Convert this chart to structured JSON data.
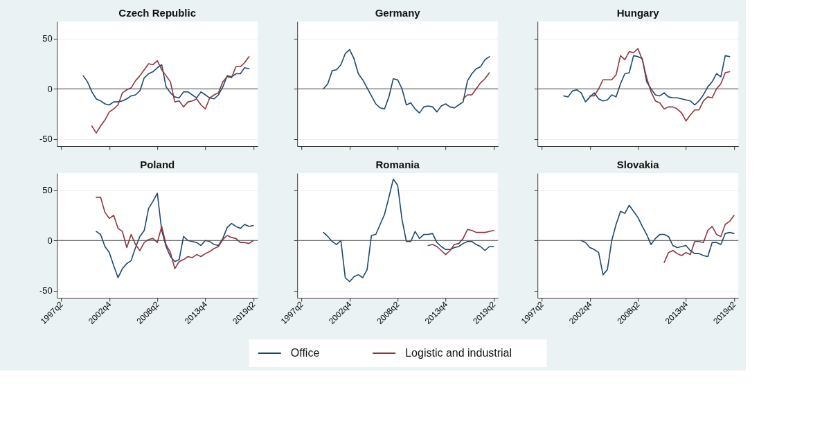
{
  "chart_data": [
    {
      "type": "line",
      "title": "Czech Republic",
      "tick_labels": "y",
      "grid": "y",
      "legend": "bottom",
      "categories": [
        "1997q2",
        null,
        null,
        null,
        null,
        null,
        null,
        null,
        null,
        null,
        null,
        "2002q4",
        null,
        null,
        null,
        null,
        null,
        null,
        null,
        null,
        null,
        null,
        "2008q2",
        null,
        null,
        null,
        null,
        null,
        null,
        null,
        null,
        null,
        null,
        "2013q4",
        null,
        null,
        null,
        null,
        null,
        null,
        null,
        null,
        null,
        null,
        "2019q2"
      ],
      "series": [
        {
          "name": "Office",
          "color": "#1a476f",
          "values": [
            null,
            null,
            null,
            null,
            null,
            13,
            7,
            -3,
            -10,
            -12,
            -15,
            -16,
            -13,
            -13,
            -12,
            -10,
            -7,
            -6,
            -2,
            11,
            15,
            17,
            21,
            24,
            2,
            -4,
            -8,
            -9,
            -3,
            -3,
            -6,
            -9,
            -3,
            -6,
            -9,
            -10,
            -6,
            2,
            13,
            12,
            15,
            15,
            21,
            20,
            null
          ]
        },
        {
          "name": "Logistic and industrial",
          "color": "#90353b",
          "values": [
            null,
            null,
            null,
            null,
            null,
            null,
            null,
            -37,
            -44,
            -37,
            -31,
            -23,
            -20,
            -16,
            -4,
            -1,
            1,
            8,
            13,
            19,
            25,
            24,
            28,
            19,
            13,
            7,
            -13,
            -12,
            -18,
            -13,
            -12,
            -10,
            -16,
            -20,
            -9,
            -6,
            -4,
            7,
            12,
            11,
            22,
            22,
            26,
            32,
            null
          ]
        }
      ],
      "ylim": [
        -57,
        67
      ],
      "yticks": [
        -50,
        0,
        50
      ],
      "ref_lines": [
        {
          "axis": "y",
          "value": 0
        }
      ]
    },
    {
      "type": "line",
      "title": "Germany",
      "tick_labels": false,
      "grid": "y",
      "categories": [
        "1997q2",
        null,
        null,
        null,
        null,
        null,
        null,
        null,
        null,
        null,
        null,
        "2002q4",
        null,
        null,
        null,
        null,
        null,
        null,
        null,
        null,
        null,
        null,
        "2008q2",
        null,
        null,
        null,
        null,
        null,
        null,
        null,
        null,
        null,
        null,
        "2013q4",
        null,
        null,
        null,
        null,
        null,
        null,
        null,
        null,
        null,
        null,
        "2019q2"
      ],
      "series": [
        {
          "name": "Office",
          "color": "#1a476f",
          "values": [
            null,
            null,
            null,
            null,
            null,
            0,
            5,
            18,
            19,
            24,
            35,
            39,
            30,
            15,
            9,
            1,
            -7,
            -15,
            -19,
            -20,
            -8,
            10,
            9,
            0,
            -16,
            -14,
            -20,
            -24,
            -18,
            -17,
            -18,
            -23,
            -17,
            -15,
            -18,
            -19,
            -16,
            -13,
            8,
            15,
            20,
            22,
            29,
            32,
            null
          ]
        },
        {
          "name": "Logistic and industrial",
          "color": "#90353b",
          "values": [
            null,
            null,
            null,
            null,
            null,
            null,
            null,
            null,
            null,
            null,
            null,
            null,
            null,
            null,
            null,
            null,
            null,
            null,
            null,
            null,
            null,
            null,
            null,
            null,
            null,
            null,
            null,
            null,
            null,
            null,
            null,
            null,
            null,
            null,
            null,
            null,
            null,
            -10,
            -6,
            -6,
            0,
            6,
            10,
            16,
            null
          ]
        }
      ],
      "ylim": [
        -57,
        67
      ],
      "yticks": [
        -50,
        0,
        50
      ],
      "ref_lines": [
        {
          "axis": "y",
          "value": 0
        }
      ]
    },
    {
      "type": "line",
      "title": "Hungary",
      "tick_labels": false,
      "grid": "y",
      "categories": [
        "1997q2",
        null,
        null,
        null,
        null,
        null,
        null,
        null,
        null,
        null,
        null,
        "2002q4",
        null,
        null,
        null,
        null,
        null,
        null,
        null,
        null,
        null,
        null,
        "2008q2",
        null,
        null,
        null,
        null,
        null,
        null,
        null,
        null,
        null,
        null,
        "2013q4",
        null,
        null,
        null,
        null,
        null,
        null,
        null,
        null,
        null,
        null,
        "2019q2"
      ],
      "series": [
        {
          "name": "Office",
          "color": "#1a476f",
          "values": [
            null,
            null,
            null,
            null,
            null,
            -7,
            -8,
            -2,
            -1,
            -4,
            -13,
            -8,
            -4,
            -10,
            -12,
            -11,
            -6,
            -8,
            5,
            15,
            16,
            33,
            32,
            30,
            7,
            0,
            -6,
            -7,
            -4,
            -8,
            -9,
            -9,
            -10,
            -11,
            -12,
            -16,
            -12,
            -6,
            2,
            7,
            15,
            12,
            33,
            32,
            null
          ]
        },
        {
          "name": "Logistic and industrial",
          "color": "#90353b",
          "values": [
            null,
            null,
            null,
            null,
            null,
            null,
            null,
            null,
            null,
            null,
            null,
            -7,
            -7,
            0,
            9,
            9,
            9,
            14,
            33,
            29,
            37,
            36,
            40,
            29,
            11,
            -3,
            -12,
            -14,
            -20,
            -18,
            -18,
            -20,
            -24,
            -32,
            -26,
            -21,
            -21,
            -12,
            -8,
            -9,
            0,
            5,
            16,
            17,
            null
          ]
        }
      ],
      "ylim": [
        -57,
        67
      ],
      "yticks": [
        -50,
        0,
        50
      ],
      "ref_lines": [
        {
          "axis": "y",
          "value": 0
        }
      ]
    },
    {
      "type": "line",
      "title": "Poland",
      "grid": "y",
      "categories": [
        "1997q2",
        null,
        null,
        null,
        null,
        null,
        null,
        null,
        null,
        null,
        null,
        "2002q4",
        null,
        null,
        null,
        null,
        null,
        null,
        null,
        null,
        null,
        null,
        "2008q2",
        null,
        null,
        null,
        null,
        null,
        null,
        null,
        null,
        null,
        null,
        "2013q4",
        null,
        null,
        null,
        null,
        null,
        null,
        null,
        null,
        null,
        null,
        "2019q2"
      ],
      "series": [
        {
          "name": "Office",
          "color": "#1a476f",
          "values": [
            null,
            null,
            null,
            null,
            null,
            null,
            null,
            null,
            9,
            6,
            -6,
            -12,
            -25,
            -37,
            -28,
            -23,
            -20,
            -7,
            4,
            10,
            32,
            39,
            47,
            10,
            -6,
            -16,
            -21,
            -19,
            4,
            0,
            -1,
            -2,
            -5,
            0,
            -1,
            -4,
            -5,
            2,
            13,
            17,
            14,
            12,
            16,
            14,
            15
          ]
        },
        {
          "name": "Logistic and industrial",
          "color": "#90353b",
          "values": [
            null,
            null,
            null,
            null,
            null,
            null,
            null,
            null,
            43,
            43,
            28,
            22,
            25,
            12,
            9,
            -7,
            6,
            -4,
            -10,
            -2,
            1,
            2,
            -2,
            14,
            -4,
            -12,
            -28,
            -21,
            -19,
            -16,
            -17,
            -14,
            -16,
            -13,
            -11,
            -8,
            -6,
            1,
            5,
            3,
            2,
            -2,
            -2,
            -3,
            0
          ]
        }
      ],
      "ylim": [
        -57,
        67
      ],
      "yticks": [
        -50,
        0,
        50
      ],
      "ref_lines": [
        {
          "axis": "y",
          "value": 0
        }
      ]
    },
    {
      "type": "line",
      "title": "Romania",
      "tick_labels": "x",
      "grid": "y",
      "categories": [
        "1997q2",
        null,
        null,
        null,
        null,
        null,
        null,
        null,
        null,
        null,
        null,
        "2002q4",
        null,
        null,
        null,
        null,
        null,
        null,
        null,
        null,
        null,
        null,
        "2008q2",
        null,
        null,
        null,
        null,
        null,
        null,
        null,
        null,
        null,
        null,
        "2013q4",
        null,
        null,
        null,
        null,
        null,
        null,
        null,
        null,
        null,
        null,
        "2019q2"
      ],
      "series": [
        {
          "name": "Office",
          "color": "#1a476f",
          "values": [
            null,
            null,
            null,
            null,
            null,
            8,
            4,
            -1,
            -4,
            0,
            -37,
            -41,
            -36,
            -34,
            -37,
            -29,
            5,
            6,
            16,
            26,
            43,
            61,
            55,
            21,
            -1,
            -1,
            9,
            2,
            6,
            6,
            7,
            -2,
            -6,
            -9,
            -9,
            -7,
            -6,
            -3,
            -1,
            -1,
            -4,
            -6,
            -10,
            -6,
            -6
          ]
        },
        {
          "name": "Logistic and industrial",
          "color": "#90353b",
          "values": [
            null,
            null,
            null,
            null,
            null,
            null,
            null,
            null,
            null,
            null,
            null,
            null,
            null,
            null,
            null,
            null,
            null,
            null,
            null,
            null,
            null,
            null,
            null,
            null,
            null,
            null,
            null,
            null,
            null,
            -5,
            -4,
            -6,
            -10,
            -14,
            -10,
            -4,
            -3,
            2,
            11,
            10,
            8,
            8,
            8,
            9,
            10
          ]
        }
      ],
      "ylim": [
        -57,
        67
      ],
      "yticks": [
        -50,
        0,
        50
      ],
      "ref_lines": [
        {
          "axis": "y",
          "value": 0
        }
      ]
    },
    {
      "type": "line",
      "title": "Slovakia",
      "tick_labels": "x",
      "grid": "y",
      "categories": [
        "1997q2",
        null,
        null,
        null,
        null,
        null,
        null,
        null,
        null,
        null,
        null,
        "2002q4",
        null,
        null,
        null,
        null,
        null,
        null,
        null,
        null,
        null,
        null,
        "2008q2",
        null,
        null,
        null,
        null,
        null,
        null,
        null,
        null,
        null,
        null,
        "2013q4",
        null,
        null,
        null,
        null,
        null,
        null,
        null,
        null,
        null,
        null,
        "2019q2"
      ],
      "series": [
        {
          "name": "Office",
          "color": "#1a476f",
          "values": [
            null,
            null,
            null,
            null,
            null,
            null,
            null,
            null,
            null,
            0,
            -2,
            -7,
            -9,
            -12,
            -34,
            -29,
            0,
            16,
            29,
            27,
            35,
            29,
            23,
            14,
            6,
            -4,
            2,
            6,
            6,
            4,
            -5,
            -7,
            -6,
            -5,
            -10,
            -13,
            -13,
            -15,
            -16,
            -2,
            -2,
            -4,
            7,
            8,
            7
          ]
        },
        {
          "name": "Logistic and industrial",
          "color": "#90353b",
          "values": [
            null,
            null,
            null,
            null,
            null,
            null,
            null,
            null,
            null,
            null,
            null,
            null,
            null,
            null,
            null,
            null,
            null,
            null,
            null,
            null,
            null,
            null,
            null,
            null,
            null,
            null,
            null,
            null,
            -22,
            -12,
            -10,
            -13,
            -15,
            -12,
            -14,
            -1,
            -1,
            -2,
            10,
            14,
            6,
            4,
            16,
            19,
            25
          ]
        }
      ],
      "ylim": [
        -57,
        67
      ],
      "yticks": [
        -50,
        0,
        50
      ],
      "ref_lines": [
        {
          "axis": "y",
          "value": 0
        }
      ]
    }
  ]
}
